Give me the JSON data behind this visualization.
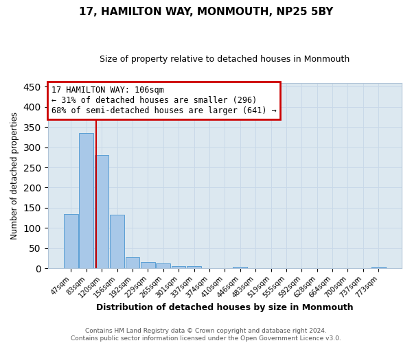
{
  "title": "17, HAMILTON WAY, MONMOUTH, NP25 5BY",
  "subtitle": "Size of property relative to detached houses in Monmouth",
  "xlabel": "Distribution of detached houses by size in Monmouth",
  "ylabel": "Number of detached properties",
  "bar_labels": [
    "47sqm",
    "83sqm",
    "120sqm",
    "156sqm",
    "192sqm",
    "229sqm",
    "265sqm",
    "301sqm",
    "337sqm",
    "374sqm",
    "410sqm",
    "446sqm",
    "483sqm",
    "519sqm",
    "555sqm",
    "592sqm",
    "628sqm",
    "664sqm",
    "700sqm",
    "737sqm",
    "773sqm"
  ],
  "bar_values": [
    135,
    335,
    280,
    133,
    27,
    16,
    12,
    6,
    5,
    0,
    0,
    3,
    0,
    0,
    0,
    0,
    0,
    0,
    0,
    0,
    3
  ],
  "bar_color": "#a8c8e8",
  "bar_edge_color": "#5a9fd4",
  "vline_x": 1.65,
  "vline_color": "#cc0000",
  "ylim": [
    0,
    460
  ],
  "yticks": [
    0,
    50,
    100,
    150,
    200,
    250,
    300,
    350,
    400,
    450
  ],
  "annotation_line1": "17 HAMILTON WAY: 106sqm",
  "annotation_line2": "← 31% of detached houses are smaller (296)",
  "annotation_line3": "68% of semi-detached houses are larger (641) →",
  "annotation_box_color": "#cc0000",
  "footer_line1": "Contains HM Land Registry data © Crown copyright and database right 2024.",
  "footer_line2": "Contains public sector information licensed under the Open Government Licence v3.0.",
  "background_color": "#ffffff",
  "grid_color": "#c8d8e8",
  "ax_bg_color": "#dce8f0"
}
